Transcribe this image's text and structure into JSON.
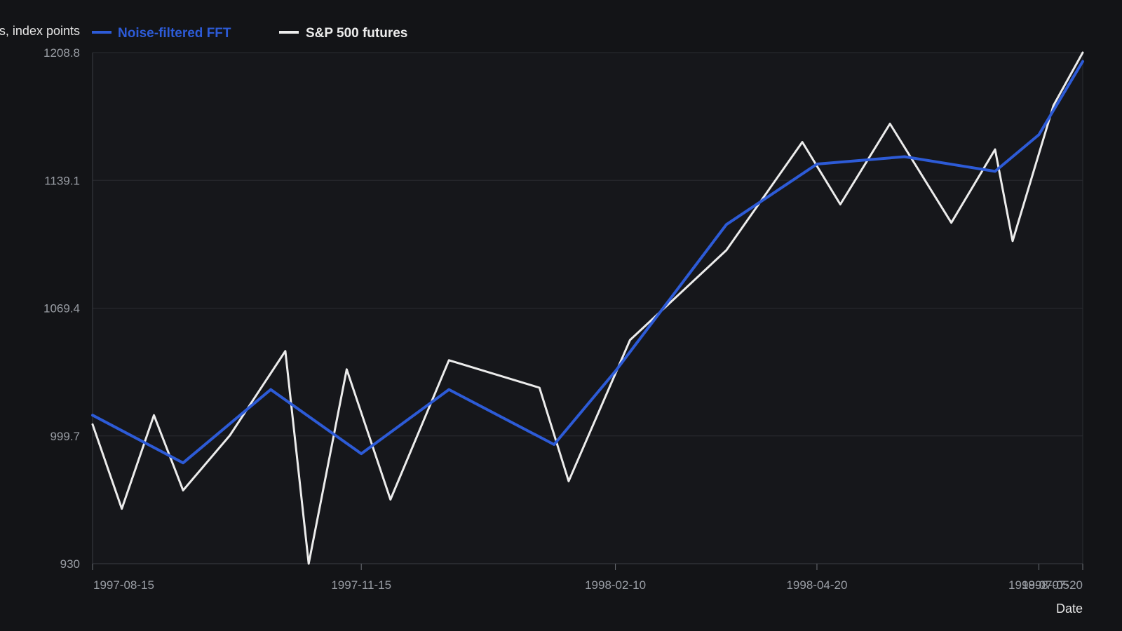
{
  "chart_data": {
    "type": "line",
    "xlabel": "Date",
    "ylabel": "s, index points",
    "ylim": [
      930,
      1208.8
    ],
    "xlim": [
      "1997-08-15",
      "1998-07-20"
    ],
    "yticks": [
      "930",
      "999.7",
      "1069.4",
      "1139.1",
      "1208.8"
    ],
    "xticks": [
      "1997-08-15",
      "1997-11-15",
      "1998-02-10",
      "1998-04-20",
      "1998-07-05",
      "1998-07-20"
    ],
    "grid": true,
    "legend_position": "top-left",
    "series": [
      {
        "name": "Noise-filtered FFT",
        "color": "#2d5bd7",
        "points": [
          [
            "1997-08-15",
            1011
          ],
          [
            "1997-09-15",
            985
          ],
          [
            "1997-10-15",
            1025
          ],
          [
            "1997-11-15",
            990
          ],
          [
            "1997-12-15",
            1025
          ],
          [
            "1998-01-20",
            995
          ],
          [
            "1998-02-10",
            1035
          ],
          [
            "1998-03-01",
            1075
          ],
          [
            "1998-03-20",
            1115
          ],
          [
            "1998-04-20",
            1148
          ],
          [
            "1998-05-20",
            1152
          ],
          [
            "1998-06-20",
            1144
          ],
          [
            "1998-07-05",
            1164
          ],
          [
            "1998-07-20",
            1204
          ]
        ]
      },
      {
        "name": "S&P 500 futures",
        "color": "#ececec",
        "points": [
          [
            "1997-08-15",
            1006
          ],
          [
            "1997-08-25",
            960
          ],
          [
            "1997-09-05",
            1011
          ],
          [
            "1997-09-15",
            970
          ],
          [
            "1997-10-01",
            1000
          ],
          [
            "1997-10-20",
            1046
          ],
          [
            "1997-10-28",
            930
          ],
          [
            "1997-11-10",
            1036
          ],
          [
            "1997-11-25",
            965
          ],
          [
            "1997-12-15",
            1041
          ],
          [
            "1998-01-15",
            1026
          ],
          [
            "1998-01-25",
            975
          ],
          [
            "1998-02-15",
            1052
          ],
          [
            "1998-03-20",
            1101
          ],
          [
            "1998-04-15",
            1160
          ],
          [
            "1998-04-28",
            1126
          ],
          [
            "1998-05-15",
            1170
          ],
          [
            "1998-06-05",
            1116
          ],
          [
            "1998-06-20",
            1156
          ],
          [
            "1998-06-26",
            1106
          ],
          [
            "1998-07-10",
            1180
          ],
          [
            "1998-07-20",
            1208.8
          ]
        ]
      }
    ]
  }
}
